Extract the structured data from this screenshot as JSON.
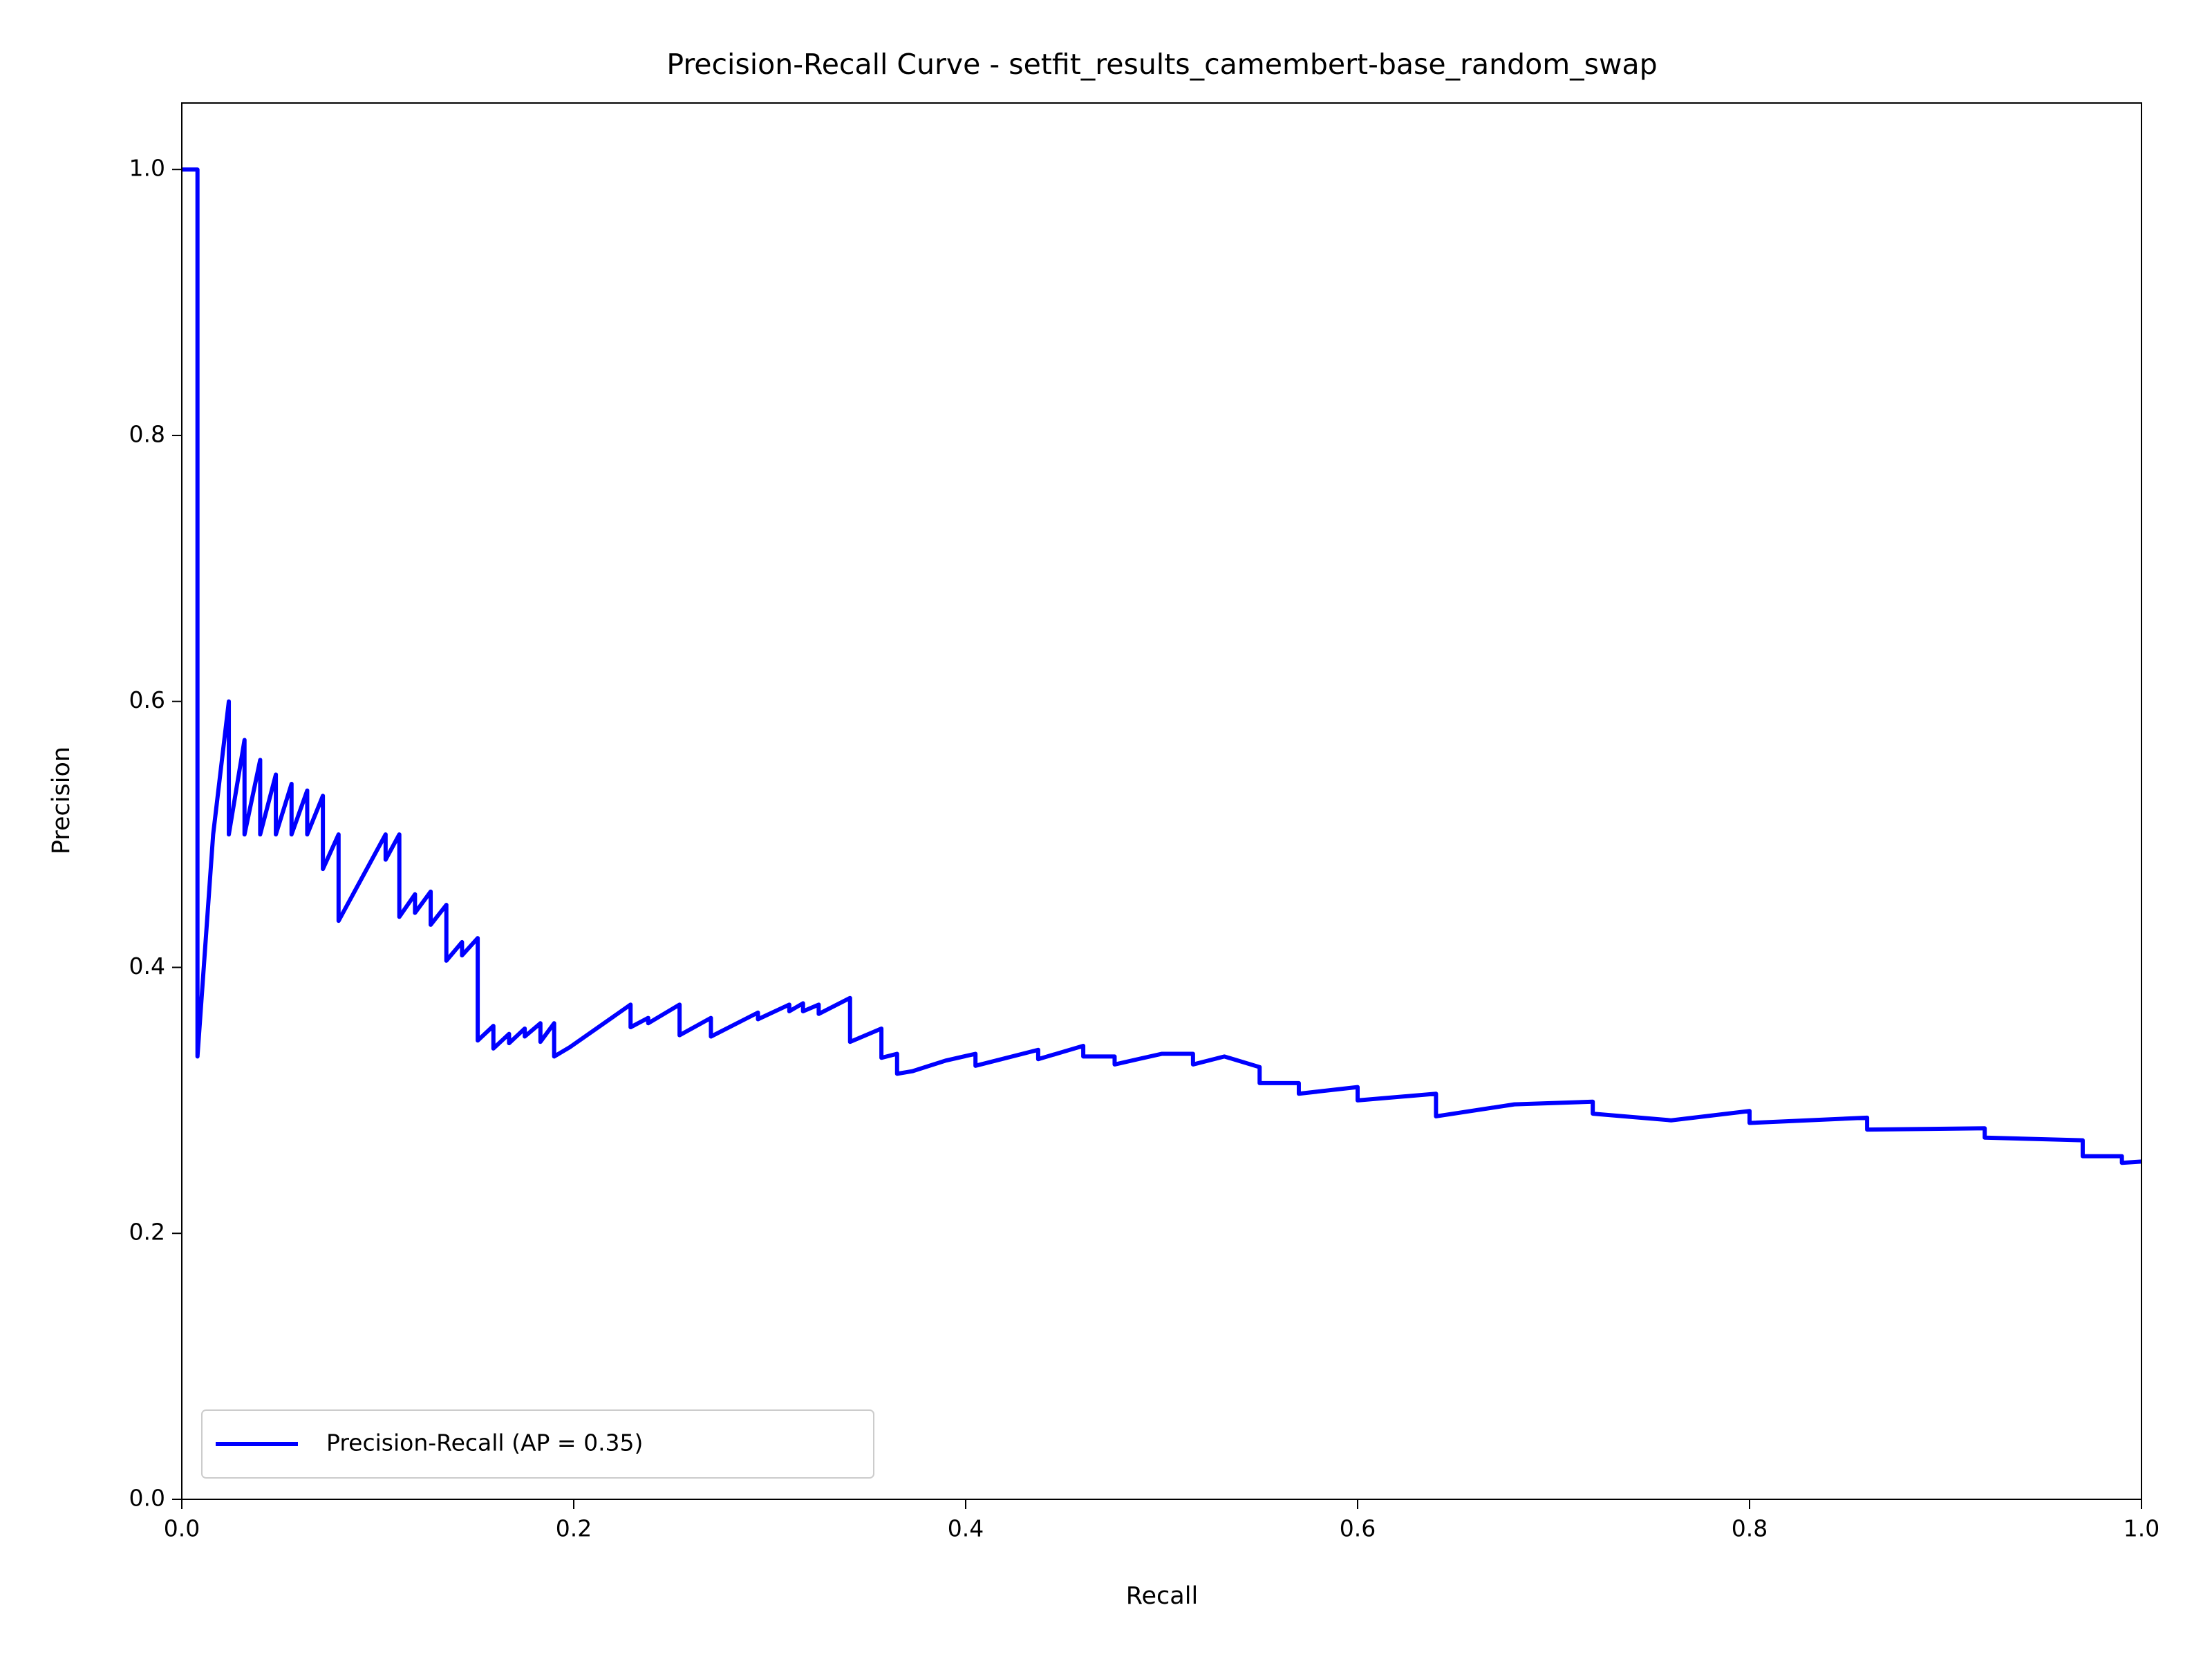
{
  "chart_data": {
    "type": "line",
    "title": "Precision-Recall Curve - setfit_results_camembert-base_random_swap",
    "xlabel": "Recall",
    "ylabel": "Precision",
    "x": [
      0,
      0.008,
      0.008,
      0.016,
      0.024,
      0.024,
      0.032,
      0.032,
      0.04,
      0.04,
      0.048,
      0.048,
      0.056,
      0.056,
      0.064,
      0.064,
      0.072,
      0.072,
      0.08,
      0.08,
      0.104,
      0.104,
      0.111,
      0.111,
      0.119,
      0.119,
      0.127,
      0.127,
      0.135,
      0.135,
      0.143,
      0.143,
      0.151,
      0.151,
      0.159,
      0.159,
      0.167,
      0.167,
      0.175,
      0.175,
      0.183,
      0.183,
      0.19,
      0.19,
      0.198,
      0.229,
      0.229,
      0.238,
      0.238,
      0.254,
      0.254,
      0.27,
      0.27,
      0.294,
      0.294,
      0.31,
      0.31,
      0.317,
      0.317,
      0.325,
      0.325,
      0.341,
      0.341,
      0.357,
      0.357,
      0.365,
      0.365,
      0.373,
      0.39,
      0.405,
      0.405,
      0.437,
      0.437,
      0.46,
      0.46,
      0.476,
      0.476,
      0.5,
      0.516,
      0.516,
      0.532,
      0.55,
      0.55,
      0.57,
      0.57,
      0.6,
      0.6,
      0.64,
      0.64,
      0.68,
      0.72,
      0.72,
      0.76,
      0.8,
      0.8,
      0.86,
      0.86,
      0.92,
      0.92,
      0.97,
      0.97,
      0.99,
      0.99,
      1.0
    ],
    "series": [
      {
        "name": "Precision-Recall (AP = 0.35)",
        "color": "#0000ff",
        "values": [
          1.0,
          1.0,
          0.333,
          0.5,
          0.6,
          0.5,
          0.571,
          0.5,
          0.556,
          0.5,
          0.545,
          0.5,
          0.538,
          0.5,
          0.533,
          0.5,
          0.529,
          0.474,
          0.5,
          0.435,
          0.5,
          0.481,
          0.5,
          0.438,
          0.455,
          0.441,
          0.457,
          0.432,
          0.447,
          0.405,
          0.419,
          0.409,
          0.422,
          0.345,
          0.356,
          0.339,
          0.35,
          0.343,
          0.354,
          0.348,
          0.358,
          0.344,
          0.358,
          0.333,
          0.34,
          0.372,
          0.355,
          0.362,
          0.358,
          0.372,
          0.349,
          0.362,
          0.348,
          0.366,
          0.361,
          0.372,
          0.367,
          0.373,
          0.367,
          0.372,
          0.365,
          0.377,
          0.344,
          0.354,
          0.332,
          0.335,
          0.32,
          0.322,
          0.33,
          0.335,
          0.326,
          0.338,
          0.331,
          0.341,
          0.333,
          0.333,
          0.327,
          0.335,
          0.335,
          0.327,
          0.333,
          0.325,
          0.313,
          0.313,
          0.305,
          0.31,
          0.3,
          0.305,
          0.288,
          0.297,
          0.299,
          0.29,
          0.285,
          0.292,
          0.283,
          0.287,
          0.278,
          0.279,
          0.272,
          0.27,
          0.258,
          0.258,
          0.253,
          0.254
        ]
      }
    ],
    "xlim": [
      0,
      1
    ],
    "ylim": [
      0,
      1.05
    ],
    "xticks": [
      {
        "value": 0,
        "label": "0.0"
      },
      {
        "value": 0.2,
        "label": "0.2"
      },
      {
        "value": 0.4,
        "label": "0.4"
      },
      {
        "value": 0.6,
        "label": "0.6"
      },
      {
        "value": 0.8,
        "label": "0.8"
      },
      {
        "value": 1,
        "label": "1.0"
      }
    ],
    "yticks": [
      {
        "value": 0,
        "label": "0.0"
      },
      {
        "value": 0.2,
        "label": "0.2"
      },
      {
        "value": 0.4,
        "label": "0.4"
      },
      {
        "value": 0.6,
        "label": "0.6"
      },
      {
        "value": 0.8,
        "label": "0.8"
      },
      {
        "value": 1,
        "label": "1.0"
      }
    ],
    "legend": "lower left",
    "grid": false
  }
}
